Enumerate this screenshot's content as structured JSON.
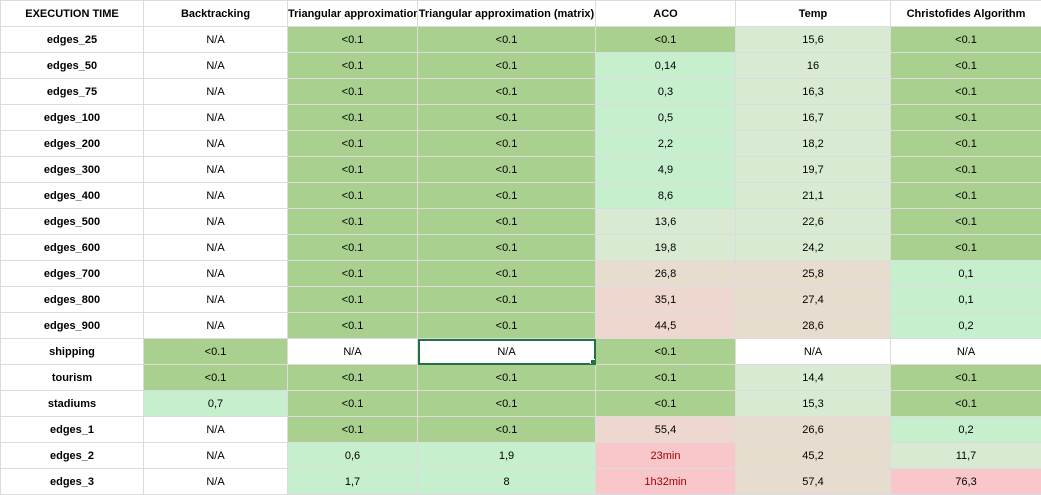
{
  "headers": [
    "EXECUTION TIME",
    "Backtracking",
    "Triangular approximation",
    "Triangular approximation (matrix)",
    "ACO",
    "Temp",
    "Christofides Algorithm"
  ],
  "rows": [
    {
      "label": "edges_25",
      "cells": [
        "N/A",
        "<0.1",
        "<0.1",
        "<0.1",
        "15,6",
        "<0.1"
      ]
    },
    {
      "label": "edges_50",
      "cells": [
        "N/A",
        "<0.1",
        "<0.1",
        "0,14",
        "16",
        "<0.1"
      ]
    },
    {
      "label": "edges_75",
      "cells": [
        "N/A",
        "<0.1",
        "<0.1",
        "0,3",
        "16,3",
        "<0.1"
      ]
    },
    {
      "label": "edges_100",
      "cells": [
        "N/A",
        "<0.1",
        "<0.1",
        "0,5",
        "16,7",
        "<0.1"
      ]
    },
    {
      "label": "edges_200",
      "cells": [
        "N/A",
        "<0.1",
        "<0.1",
        "2,2",
        "18,2",
        "<0.1"
      ]
    },
    {
      "label": "edges_300",
      "cells": [
        "N/A",
        "<0.1",
        "<0.1",
        "4,9",
        "19,7",
        "<0.1"
      ]
    },
    {
      "label": "edges_400",
      "cells": [
        "N/A",
        "<0.1",
        "<0.1",
        "8,6",
        "21,1",
        "<0.1"
      ]
    },
    {
      "label": "edges_500",
      "cells": [
        "N/A",
        "<0.1",
        "<0.1",
        "13,6",
        "22,6",
        "<0.1"
      ]
    },
    {
      "label": "edges_600",
      "cells": [
        "N/A",
        "<0.1",
        "<0.1",
        "19,8",
        "24,2",
        "<0.1"
      ]
    },
    {
      "label": "edges_700",
      "cells": [
        "N/A",
        "<0.1",
        "<0.1",
        "26,8",
        "25,8",
        "0,1"
      ]
    },
    {
      "label": "edges_800",
      "cells": [
        "N/A",
        "<0.1",
        "<0.1",
        "35,1",
        "27,4",
        "0,1"
      ]
    },
    {
      "label": "edges_900",
      "cells": [
        "N/A",
        "<0.1",
        "<0.1",
        "44,5",
        "28,6",
        "0,2"
      ]
    },
    {
      "label": "shipping",
      "cells": [
        "<0.1",
        "N/A",
        "N/A",
        "<0.1",
        "N/A",
        "N/A"
      ]
    },
    {
      "label": "tourism",
      "cells": [
        "<0.1",
        "<0.1",
        "<0.1",
        "<0.1",
        "14,4",
        "<0.1"
      ]
    },
    {
      "label": "stadiums",
      "cells": [
        "0,7",
        "<0.1",
        "<0.1",
        "<0.1",
        "15,3",
        "<0.1"
      ]
    },
    {
      "label": "edges_1",
      "cells": [
        "N/A",
        "<0.1",
        "<0.1",
        "55,4",
        "26,6",
        "0,2"
      ]
    },
    {
      "label": "edges_2",
      "cells": [
        "N/A",
        "0,6",
        "1,9",
        "23min",
        "45,2",
        "11,7"
      ]
    },
    {
      "label": "edges_3",
      "cells": [
        "N/A",
        "1,7",
        "8",
        "1h32min",
        "57,4",
        "76,3"
      ]
    }
  ],
  "fills": {
    "none": "#ffffff",
    "g1": "#a9d08e",
    "g2": "#c6efce",
    "g3": "#d9ead3",
    "tan": "#e6ddce",
    "beige": "#eed7ce",
    "pink": "#f9c6c9"
  },
  "cell_fills": [
    [
      "none",
      "g1",
      "g1",
      "g1",
      "g3",
      "g1"
    ],
    [
      "none",
      "g1",
      "g1",
      "g2",
      "g3",
      "g1"
    ],
    [
      "none",
      "g1",
      "g1",
      "g2",
      "g3",
      "g1"
    ],
    [
      "none",
      "g1",
      "g1",
      "g2",
      "g3",
      "g1"
    ],
    [
      "none",
      "g1",
      "g1",
      "g2",
      "g3",
      "g1"
    ],
    [
      "none",
      "g1",
      "g1",
      "g2",
      "g3",
      "g1"
    ],
    [
      "none",
      "g1",
      "g1",
      "g2",
      "g3",
      "g1"
    ],
    [
      "none",
      "g1",
      "g1",
      "g3",
      "g3",
      "g1"
    ],
    [
      "none",
      "g1",
      "g1",
      "g3",
      "g3",
      "g1"
    ],
    [
      "none",
      "g1",
      "g1",
      "tan",
      "tan",
      "g2"
    ],
    [
      "none",
      "g1",
      "g1",
      "beige",
      "tan",
      "g2"
    ],
    [
      "none",
      "g1",
      "g1",
      "beige",
      "tan",
      "g2"
    ],
    [
      "g1",
      "none",
      "none",
      "g1",
      "none",
      "none"
    ],
    [
      "g1",
      "g1",
      "g1",
      "g1",
      "g3",
      "g1"
    ],
    [
      "g2",
      "g1",
      "g1",
      "g1",
      "g3",
      "g1"
    ],
    [
      "none",
      "g1",
      "g1",
      "beige",
      "tan",
      "g2"
    ],
    [
      "none",
      "g2",
      "g2",
      "pink",
      "tan",
      "g3"
    ],
    [
      "none",
      "g2",
      "g2",
      "pink",
      "tan",
      "pink"
    ]
  ],
  "red_text_cells": [
    [
      16,
      3
    ],
    [
      17,
      3
    ]
  ],
  "selected_cell": [
    12,
    2
  ]
}
